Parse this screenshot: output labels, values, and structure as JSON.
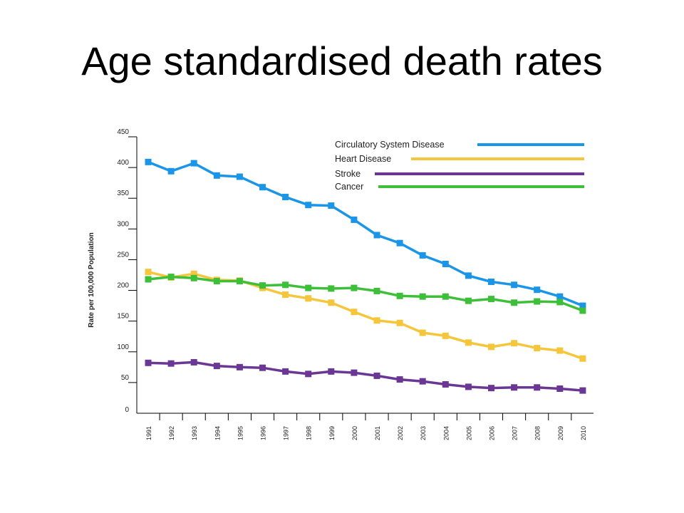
{
  "slide": {
    "title": "Age standardised death rates"
  },
  "chart_data": {
    "type": "line",
    "title": "",
    "xlabel": "",
    "ylabel": "Rate per 100,000 Population",
    "ylim": [
      0,
      450
    ],
    "yticks": [
      0,
      50,
      100,
      150,
      200,
      250,
      300,
      350,
      400,
      450
    ],
    "grid": false,
    "legend": "top-right",
    "x": [
      "1991",
      "1992",
      "1993",
      "1994",
      "1995",
      "1996",
      "1997",
      "1998",
      "1999",
      "2000",
      "2001",
      "2002",
      "2003",
      "2004",
      "2005",
      "2006",
      "2007",
      "2008",
      "2009",
      "2010"
    ],
    "series": [
      {
        "name": "Circulatory System Disease",
        "color": "#1a95e8",
        "values": [
          409,
          394,
          407,
          387,
          385,
          368,
          352,
          339,
          338,
          315,
          290,
          277,
          257,
          243,
          224,
          214,
          209,
          201,
          190,
          175
        ]
      },
      {
        "name": "Heart Disease",
        "color": "#f5c63c",
        "values": [
          230,
          221,
          227,
          217,
          216,
          204,
          193,
          187,
          180,
          165,
          151,
          147,
          131,
          126,
          115,
          108,
          114,
          106,
          102,
          89
        ]
      },
      {
        "name": "Stroke",
        "color": "#6a3794",
        "values": [
          82,
          81,
          83,
          77,
          75,
          74,
          68,
          64,
          68,
          66,
          61,
          55,
          52,
          47,
          43,
          41,
          42,
          42,
          40,
          37
        ]
      },
      {
        "name": "Cancer",
        "color": "#3dbf3a",
        "values": [
          218,
          222,
          220,
          215,
          215,
          208,
          209,
          204,
          203,
          204,
          199,
          191,
          190,
          190,
          183,
          186,
          180,
          182,
          181,
          167
        ]
      }
    ]
  }
}
